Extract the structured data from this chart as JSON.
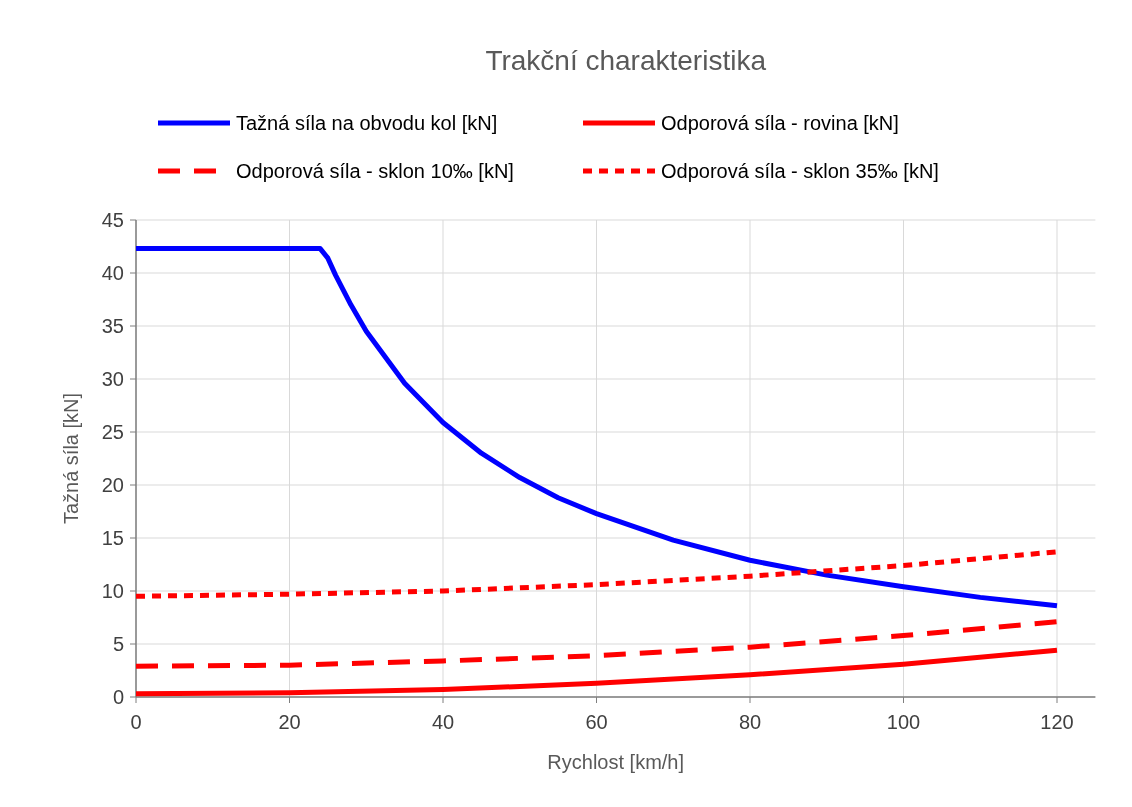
{
  "chart_data": {
    "type": "line",
    "title": "Trakční charakteristika",
    "xlabel": "Rychlost [km/h]",
    "ylabel": "Tažná síla [kN]",
    "xlim": [
      0,
      125
    ],
    "xticks": [
      0,
      20,
      40,
      60,
      80,
      100,
      120
    ],
    "ylim": [
      0,
      45
    ],
    "yticks": [
      0,
      5,
      10,
      15,
      20,
      25,
      30,
      35,
      40,
      45
    ],
    "grid": true,
    "legend": "top",
    "series": [
      {
        "name": "Tažná síla na obvodu kol [kN]",
        "color": "#0000ff",
        "line_style": "solid",
        "x": [
          0,
          24,
          25,
          26,
          28,
          30,
          35,
          40,
          45,
          50,
          55,
          60,
          70,
          80,
          90,
          100,
          110,
          120
        ],
        "values": [
          42.3,
          42.3,
          41.4,
          39.8,
          37.0,
          34.5,
          29.6,
          25.9,
          23.0,
          20.7,
          18.8,
          17.3,
          14.8,
          12.9,
          11.5,
          10.4,
          9.4,
          8.6
        ]
      },
      {
        "name": "Odporová síla - rovina [kN]",
        "color": "#ff0000",
        "line_style": "solid",
        "x": [
          0,
          20,
          40,
          60,
          80,
          100,
          120
        ],
        "values": [
          0.3,
          0.4,
          0.7,
          1.3,
          2.1,
          3.1,
          4.4
        ]
      },
      {
        "name": "Odporová síla - sklon 10‰ [kN]",
        "color": "#ff0000",
        "line_style": "dashed",
        "x": [
          0,
          20,
          40,
          60,
          80,
          100,
          120
        ],
        "values": [
          2.9,
          3.0,
          3.4,
          3.9,
          4.7,
          5.8,
          7.1
        ]
      },
      {
        "name": "Odporová síla - sklon 35‰ [kN]",
        "color": "#ff0000",
        "line_style": "dotted",
        "x": [
          0,
          20,
          40,
          60,
          80,
          100,
          120
        ],
        "values": [
          9.5,
          9.7,
          10.0,
          10.6,
          11.4,
          12.4,
          13.7
        ]
      }
    ]
  }
}
